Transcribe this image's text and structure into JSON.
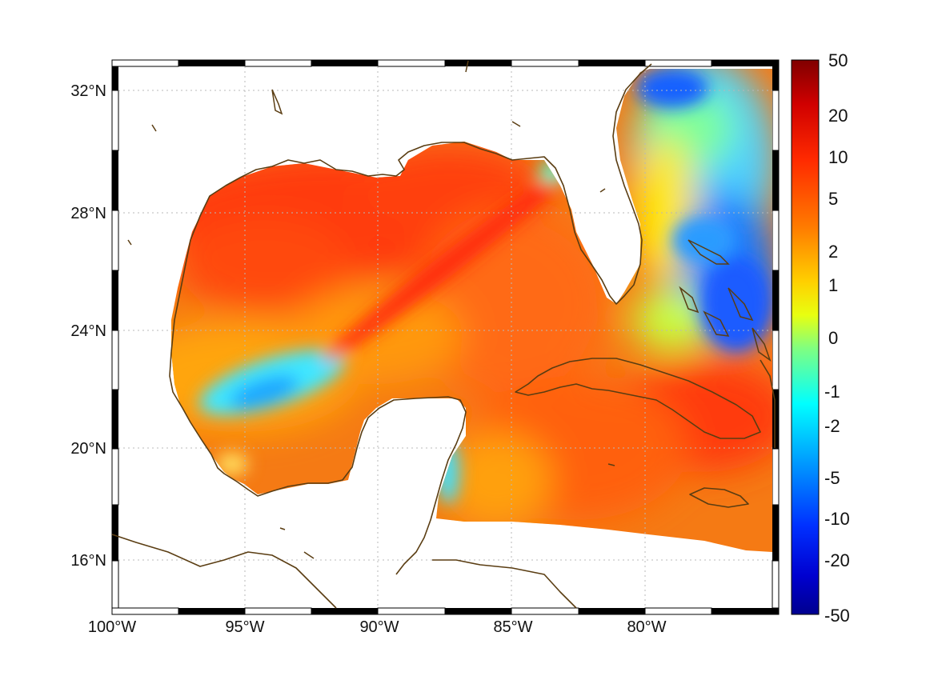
{
  "map": {
    "lat_labels": [
      "32°N",
      "28°N",
      "24°N",
      "20°N",
      "16°N"
    ],
    "lon_labels": [
      "100°W",
      "95°W",
      "90°W",
      "85°W",
      "80°W"
    ],
    "extent": {
      "lon_min": -100,
      "lon_max": -75.1,
      "lat_min": 14.3,
      "lat_max": 33
    },
    "coastline_color": "#5a3d12",
    "grid": true
  },
  "colorbar": {
    "tick_labels": [
      "50",
      "20",
      "10",
      "5",
      "2",
      "1",
      "0",
      "-1",
      "-2",
      "-5",
      "-10",
      "-20",
      "-50"
    ],
    "colormap": "jet",
    "colors": [
      "#800000",
      "#ff0000",
      "#ff8000",
      "#ffff00",
      "#80ff80",
      "#00ffff",
      "#0080ff",
      "#0000ff",
      "#00008f"
    ]
  }
}
